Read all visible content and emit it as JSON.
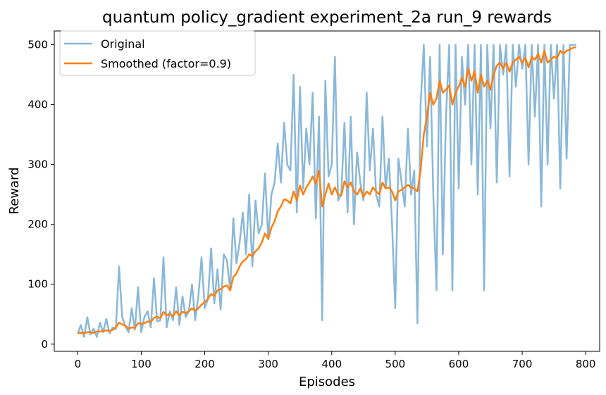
{
  "chart_data": {
    "type": "line",
    "title": "quantum policy_gradient experiment_2a run_9 rewards",
    "xlabel": "Episodes",
    "ylabel": "Reward",
    "xlim": [
      -37,
      822
    ],
    "ylim": [
      -12,
      523
    ],
    "xticks": [
      0,
      100,
      200,
      300,
      400,
      500,
      600,
      700,
      800
    ],
    "yticks": [
      0,
      100,
      200,
      300,
      400,
      500
    ],
    "grid": false,
    "legend_position": "top-left",
    "colors": {
      "original": "#8ab8d9",
      "smoothed": "#ff7f0e"
    },
    "series": [
      {
        "name": "Original",
        "x": [
          0,
          5,
          10,
          15,
          20,
          25,
          30,
          35,
          40,
          45,
          50,
          55,
          60,
          65,
          70,
          75,
          80,
          85,
          90,
          95,
          100,
          105,
          110,
          115,
          120,
          125,
          130,
          135,
          140,
          145,
          150,
          155,
          160,
          165,
          170,
          175,
          180,
          185,
          190,
          195,
          200,
          205,
          210,
          215,
          220,
          225,
          230,
          235,
          240,
          245,
          250,
          255,
          260,
          265,
          270,
          275,
          280,
          285,
          290,
          295,
          300,
          305,
          310,
          315,
          320,
          325,
          330,
          335,
          340,
          345,
          350,
          355,
          360,
          365,
          370,
          375,
          380,
          385,
          390,
          395,
          400,
          405,
          410,
          415,
          420,
          425,
          430,
          435,
          440,
          445,
          450,
          455,
          460,
          465,
          470,
          475,
          480,
          485,
          490,
          495,
          500,
          505,
          510,
          515,
          520,
          525,
          530,
          535,
          540,
          545,
          550,
          555,
          560,
          565,
          570,
          575,
          580,
          585,
          590,
          595,
          600,
          605,
          610,
          615,
          620,
          625,
          630,
          635,
          640,
          645,
          650,
          655,
          660,
          665,
          670,
          675,
          680,
          685,
          690,
          695,
          700,
          705,
          710,
          715,
          720,
          725,
          730,
          735,
          740,
          745,
          750,
          755,
          760,
          765,
          770,
          775,
          780,
          785
        ],
        "values": [
          18,
          32,
          12,
          45,
          16,
          26,
          12,
          36,
          20,
          42,
          18,
          28,
          25,
          130,
          45,
          30,
          20,
          60,
          24,
          95,
          20,
          45,
          55,
          28,
          110,
          38,
          40,
          145,
          28,
          55,
          40,
          95,
          32,
          80,
          45,
          55,
          100,
          40,
          80,
          145,
          60,
          75,
          160,
          68,
          125,
          58,
          150,
          140,
          90,
          210,
          135,
          170,
          220,
          150,
          250,
          130,
          240,
          185,
          200,
          285,
          175,
          250,
          270,
          335,
          270,
          370,
          300,
          290,
          450,
          220,
          430,
          260,
          360,
          300,
          420,
          210,
          380,
          40,
          440,
          280,
          300,
          480,
          240,
          250,
          370,
          220,
          380,
          200,
          320,
          270,
          240,
          420,
          290,
          360,
          250,
          230,
          380,
          260,
          310,
          200,
          60,
          310,
          270,
          230,
          360,
          250,
          290,
          35,
          400,
          500,
          330,
          480,
          250,
          90,
          500,
          150,
          380,
          500,
          90,
          500,
          260,
          480,
          400,
          500,
          300,
          500,
          250,
          500,
          90,
          500,
          360,
          500,
          270,
          500,
          450,
          500,
          280,
          500,
          430,
          500,
          460,
          500,
          300,
          500,
          380,
          500,
          230,
          500,
          300,
          500,
          410,
          500,
          260,
          500,
          310,
          500,
          500,
          500
        ]
      },
      {
        "name": "Smoothed (factor=0.9)",
        "x": [
          0,
          5,
          10,
          15,
          20,
          25,
          30,
          35,
          40,
          45,
          50,
          55,
          60,
          65,
          70,
          75,
          80,
          85,
          90,
          95,
          100,
          105,
          110,
          115,
          120,
          125,
          130,
          135,
          140,
          145,
          150,
          155,
          160,
          165,
          170,
          175,
          180,
          185,
          190,
          195,
          200,
          205,
          210,
          215,
          220,
          225,
          230,
          235,
          240,
          245,
          250,
          255,
          260,
          265,
          270,
          275,
          280,
          285,
          290,
          295,
          300,
          305,
          310,
          315,
          320,
          325,
          330,
          335,
          340,
          345,
          350,
          355,
          360,
          365,
          370,
          375,
          380,
          385,
          390,
          395,
          400,
          405,
          410,
          415,
          420,
          425,
          430,
          435,
          440,
          445,
          450,
          455,
          460,
          465,
          470,
          475,
          480,
          485,
          490,
          495,
          500,
          505,
          510,
          515,
          520,
          525,
          530,
          535,
          540,
          545,
          550,
          555,
          560,
          565,
          570,
          575,
          580,
          585,
          590,
          595,
          600,
          605,
          610,
          615,
          620,
          625,
          630,
          635,
          640,
          645,
          650,
          655,
          660,
          665,
          670,
          675,
          680,
          685,
          690,
          695,
          700,
          705,
          710,
          715,
          720,
          725,
          730,
          735,
          740,
          745,
          750,
          755,
          760,
          765,
          770,
          775,
          780,
          785
        ],
        "values": [
          18,
          19,
          18,
          20,
          20,
          19,
          21,
          21,
          22,
          23,
          22,
          24,
          28,
          36,
          33,
          31,
          26,
          28,
          27,
          35,
          34,
          35,
          38,
          37,
          44,
          46,
          43,
          54,
          48,
          50,
          47,
          55,
          48,
          54,
          52,
          55,
          60,
          56,
          60,
          66,
          70,
          76,
          84,
          80,
          90,
          92,
          96,
          98,
          90,
          112,
          118,
          130,
          138,
          142,
          150,
          147,
          155,
          160,
          170,
          185,
          176,
          195,
          205,
          222,
          230,
          242,
          240,
          235,
          255,
          240,
          265,
          250,
          262,
          270,
          280,
          268,
          290,
          230,
          250,
          268,
          250,
          262,
          250,
          248,
          272,
          262,
          270,
          255,
          250,
          260,
          246,
          255,
          250,
          262,
          255,
          250,
          270,
          260,
          262,
          255,
          240,
          255,
          258,
          262,
          266,
          262,
          260,
          255,
          290,
          350,
          380,
          420,
          400,
          410,
          440,
          420,
          425,
          432,
          400,
          420,
          430,
          445,
          430,
          460,
          440,
          455,
          420,
          450,
          430,
          440,
          425,
          450,
          465,
          470,
          460,
          470,
          455,
          470,
          475,
          480,
          470,
          478,
          462,
          480,
          475,
          485,
          470,
          490,
          470,
          475,
          480,
          478,
          490,
          485,
          490,
          492,
          495,
          496
        ]
      }
    ]
  }
}
